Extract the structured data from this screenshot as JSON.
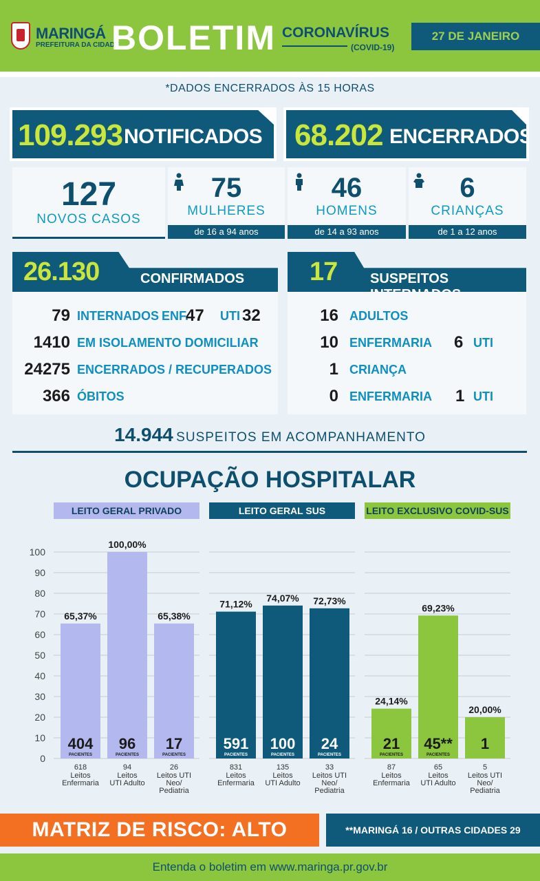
{
  "header": {
    "city": "MARINGÁ",
    "prefeitura": "PREFEITURA DA CIDADE",
    "title": "BOLETIM",
    "corona": "CORONAVÍRUS",
    "covid": "(COVID-19)",
    "date": "27 DE JANEIRO"
  },
  "dados_encerrados": "*DADOS ENCERRADOS ÀS 15 HORAS",
  "notificados": {
    "value": "109.293",
    "label": "NOTIFICADOS"
  },
  "encerrados": {
    "value": "68.202",
    "label": "ENCERRADOS"
  },
  "novos_casos": {
    "value": "127",
    "label": "NOVOS CASOS"
  },
  "mulheres": {
    "value": "75",
    "label": "MULHERES",
    "range": "de 16 a 94 anos"
  },
  "homens": {
    "value": "46",
    "label": "HOMENS",
    "range": "de 14 a 93 anos"
  },
  "criancas": {
    "value": "6",
    "label": "CRIANÇAS",
    "range": "de 1 a 12 anos"
  },
  "confirmados": {
    "value": "26.130",
    "label": "CONFIRMADOS",
    "internados": {
      "value": "79",
      "label": "INTERNADOS",
      "enf_label": "ENF.",
      "enf_value": "47",
      "uti_label": "UTI",
      "uti_value": "32"
    },
    "isolamento": {
      "value": "1410",
      "label": "EM ISOLAMENTO DOMICILIAR"
    },
    "recuperados": {
      "value": "24275",
      "label": "ENCERRADOS / RECUPERADOS"
    },
    "obitos": {
      "value": "366",
      "label": "ÓBITOS"
    }
  },
  "suspeitos_internados": {
    "value": "17",
    "label": "SUSPEITOS INTERNADOS",
    "adultos": {
      "value": "16",
      "label": "ADULTOS"
    },
    "adultos_enf": {
      "value": "10",
      "label": "ENFERMARIA",
      "uti_value": "6",
      "uti_label": "UTI"
    },
    "crianca": {
      "value": "1",
      "label": "CRIANÇA"
    },
    "crianca_enf": {
      "value": "0",
      "label": "ENFERMARIA",
      "uti_value": "1",
      "uti_label": "UTI"
    }
  },
  "acompanhamento": {
    "value": "14.944",
    "label": "SUSPEITOS EM ACOMPANHAMENTO"
  },
  "ocupacao_title": "OCUPAÇÃO HOSPITALAR",
  "chart_data": {
    "type": "bar",
    "title": "OCUPAÇÃO HOSPITALAR",
    "ylim": [
      0,
      100
    ],
    "yticks": [
      0,
      10,
      20,
      30,
      40,
      50,
      60,
      70,
      80,
      90,
      100
    ],
    "grid": true,
    "colors": {
      "privado": "#b3b9ee",
      "sus": "#0f5a7a",
      "covid": "#8cc63f"
    },
    "groups": [
      {
        "name": "LEITO GERAL PRIVADO",
        "bars": [
          {
            "value": 65.37,
            "label": "65,37%",
            "pacientes": "404",
            "leitos": "618",
            "categoria": [
              "Leitos",
              "Enfermaria"
            ]
          },
          {
            "value": 100.0,
            "label": "100,00%",
            "pacientes": "96",
            "leitos": "94",
            "categoria": [
              "Leitos",
              "UTI Adulto"
            ]
          },
          {
            "value": 65.38,
            "label": "65,38%",
            "pacientes": "17",
            "leitos": "26",
            "categoria": [
              "Leitos UTI",
              "Neo/",
              "Pediatria"
            ]
          }
        ]
      },
      {
        "name": "LEITO GERAL SUS",
        "bars": [
          {
            "value": 71.12,
            "label": "71,12%",
            "pacientes": "591",
            "leitos": "831",
            "categoria": [
              "Leitos",
              "Enfermaria"
            ]
          },
          {
            "value": 74.07,
            "label": "74,07%",
            "pacientes": "100",
            "leitos": "135",
            "categoria": [
              "Leitos",
              "UTI Adulto"
            ]
          },
          {
            "value": 72.73,
            "label": "72,73%",
            "pacientes": "24",
            "leitos": "33",
            "categoria": [
              "Leitos UTI",
              "Neo/",
              "Pediatria"
            ]
          }
        ]
      },
      {
        "name": "LEITO EXCLUSIVO COVID-SUS",
        "bars": [
          {
            "value": 24.14,
            "label": "24,14%",
            "pacientes": "21",
            "leitos": "87",
            "categoria": [
              "Leitos",
              "Enfermaria"
            ]
          },
          {
            "value": 69.23,
            "label": "69,23%",
            "pacientes": "45**",
            "leitos": "65",
            "categoria": [
              "Leitos",
              "UTI Adulto"
            ]
          },
          {
            "value": 20.0,
            "label": "20,00%",
            "pacientes": "1",
            "leitos": "5",
            "categoria": [
              "Leitos UTI",
              "Neo/",
              "Pediatria"
            ]
          }
        ]
      }
    ],
    "pacientes_label": "PACIENTES"
  },
  "risco": "MATRIZ DE RISCO: ALTO",
  "origem": "**MARINGÁ 16 / OUTRAS CIDADES 29",
  "footer": "Entenda o boletim em www.maringa.pr.gov.br"
}
